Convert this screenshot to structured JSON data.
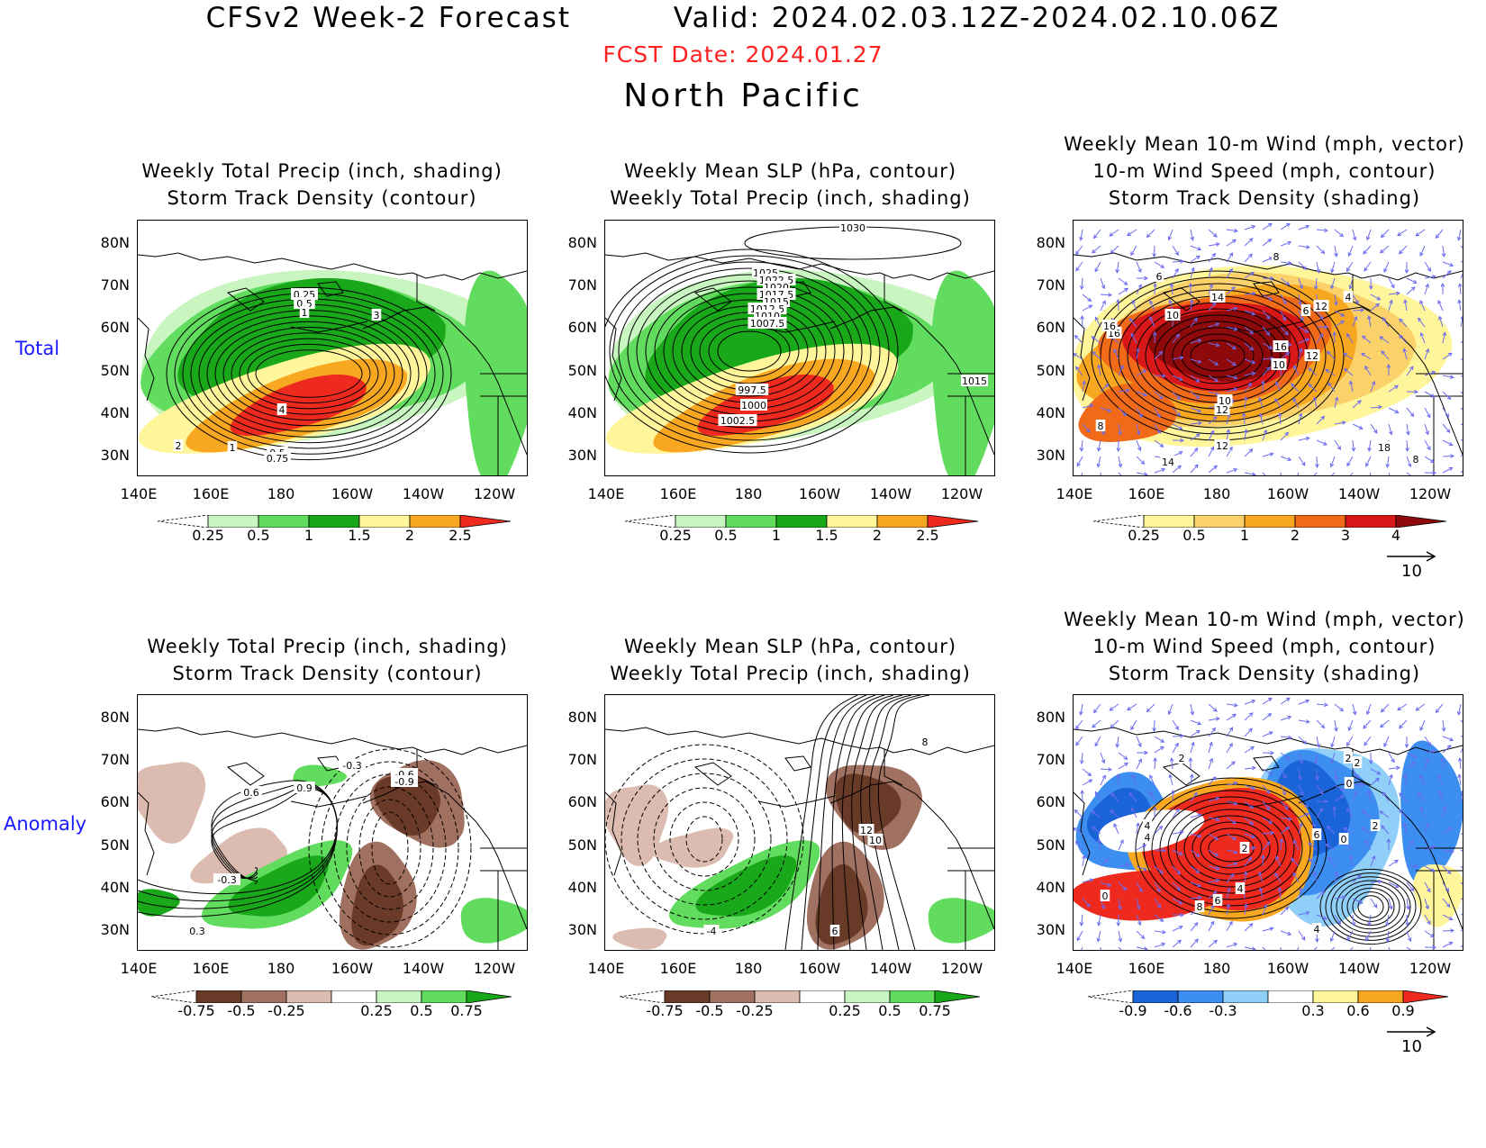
{
  "header": {
    "title_left": "CFSv2 Week-2 Forecast",
    "title_right": "Valid: 2024.02.03.12Z-2024.02.10.06Z",
    "fcst_date": "FCST Date: 2024.01.27",
    "region": "North Pacific"
  },
  "rows": [
    {
      "label": "Total"
    },
    {
      "label": "Anomaly"
    }
  ],
  "panels": {
    "total_precip": {
      "line1": "Weekly Total Precip (inch, shading)",
      "line2": "Storm Track Density (contour)"
    },
    "total_slp": {
      "line1": "Weekly Mean SLP (hPa, contour)",
      "line2": "Weekly Total Precip (inch, shading)"
    },
    "total_wind": {
      "line1": "Weekly Mean 10-m Wind (mph, vector)",
      "line2": "10-m Wind Speed (mph, contour)",
      "line3": "Storm Track Density (shading)"
    },
    "anom_precip": {
      "line1": "Weekly Total Precip (inch, shading)",
      "line2": "Storm Track Density (contour)"
    },
    "anom_slp": {
      "line1": "Weekly Mean SLP (hPa, contour)",
      "line2": "Weekly Total Precip (inch, shading)"
    },
    "anom_wind": {
      "line1": "Weekly Mean 10-m Wind (mph, vector)",
      "line2": "10-m Wind Speed (mph, contour)",
      "line3": "Storm Track Density (shading)"
    }
  },
  "axes": {
    "lat": [
      "80N",
      "70N",
      "60N",
      "50N",
      "40N",
      "30N"
    ],
    "lon": [
      "140E",
      "160E",
      "180",
      "160W",
      "140W",
      "120W"
    ]
  },
  "colorbars": {
    "precip_total": {
      "labels": [
        "0.25",
        "0.5",
        "1",
        "1.5",
        "2",
        "2.5"
      ],
      "colors": [
        "#c8f5c0",
        "#62dc5e",
        "#18a81a",
        "#fff59a",
        "#f8a820",
        "#ee2a1e"
      ]
    },
    "track_total": {
      "labels": [
        "0.25",
        "0.5",
        "1",
        "2",
        "3",
        "4"
      ],
      "colors": [
        "#fff59a",
        "#fbd26a",
        "#f8a820",
        "#f06a18",
        "#d81818",
        "#8e0a0a"
      ]
    },
    "precip_anom": {
      "labels": [
        "-0.75",
        "-0.5",
        "-0.25",
        "0.25",
        "0.5",
        "0.75"
      ],
      "colors": [
        "#6a3a28",
        "#a07060",
        "#dcbcb0",
        "#ffffff",
        "#c8f5c0",
        "#62dc5e",
        "#18a81a"
      ]
    },
    "track_anom": {
      "labels": [
        "-0.9",
        "-0.6",
        "-0.3",
        "0.3",
        "0.6",
        "0.9"
      ],
      "colors": [
        "#1a64d8",
        "#3c8ef0",
        "#90d0f8",
        "#ffffff",
        "#fff59a",
        "#f8a820",
        "#ee2a1e"
      ]
    }
  },
  "vector_ref": {
    "label": "10"
  },
  "contour_labels": {
    "total_precip": [
      "0.25",
      "0.5",
      "1",
      "2",
      "3",
      "4",
      "1",
      "0.5",
      "0.75"
    ],
    "total_slp": [
      "1030",
      "1025",
      "1022.5",
      "1020",
      "1017.5",
      "1015",
      "1012.5",
      "1010",
      "1007.5",
      "997.5",
      "1000",
      "1002.5",
      "1015"
    ],
    "total_wind": [
      "8",
      "6",
      "14",
      "12",
      "10",
      "16",
      "6",
      "4",
      "16",
      "12",
      "10",
      "12",
      "8",
      "16",
      "14",
      "18",
      "12",
      "8",
      "10"
    ],
    "anom_precip": [
      "-0.3",
      "-0.6",
      "-0.9",
      "0.6",
      "0.9",
      "-0.3",
      "0.3"
    ],
    "anom_slp": [
      "8",
      "12",
      "10",
      "-4",
      "6"
    ],
    "anom_wind": [
      "2",
      "4",
      "0",
      "2",
      "4",
      "0",
      "2",
      "4",
      "6",
      "8",
      "6",
      "0",
      "2",
      "4",
      "2"
    ]
  }
}
